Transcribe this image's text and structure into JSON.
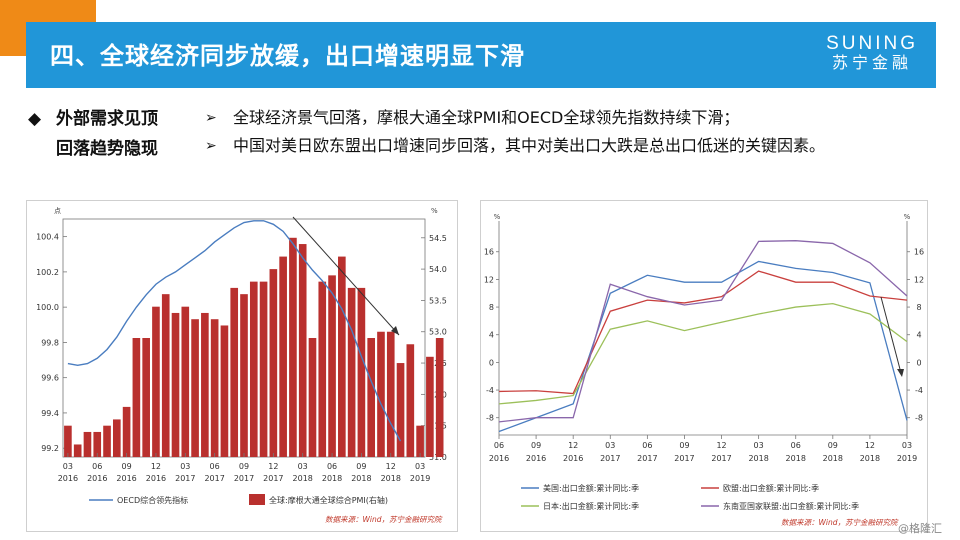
{
  "header": {
    "title": "四、全球经济同步放缓，出口增速明显下滑",
    "logo_en": "SUNING",
    "logo_cn": "苏宁金融"
  },
  "side_label": {
    "diamond": "◆",
    "line1": "外部需求见顶",
    "line2": "回落趋势隐现"
  },
  "bullets": [
    {
      "arrow": "➢",
      "text": "全球经济景气回落，摩根大通全球PMI和OECD全球领先指数持续下滑；"
    },
    {
      "arrow": "➢",
      "text": "中国对美日欧东盟出口增速同步回落，其中对美出口大跌是总出口低迷的关键因素。"
    }
  ],
  "watermark": "@格隆汇",
  "chart_data": [
    {
      "type": "bar",
      "left_axis_unit": "点",
      "right_axis_unit": "%",
      "ylim_left": [
        99.15,
        100.5
      ],
      "ylim_right": [
        51.0,
        54.8
      ],
      "left_ticks": [
        "100.4",
        "100.2",
        "100.0",
        "99.8",
        "99.6",
        "99.4",
        "99.2"
      ],
      "right_ticks": [
        "54.5",
        "54.0",
        "53.5",
        "53.0",
        "52.5",
        "52.0",
        "51.5",
        "51.0"
      ],
      "x_ticks": [
        {
          "m": "03",
          "y": "2016"
        },
        {
          "m": "06",
          "y": "2016"
        },
        {
          "m": "09",
          "y": "2016"
        },
        {
          "m": "12",
          "y": "2016"
        },
        {
          "m": "03",
          "y": "2017"
        },
        {
          "m": "06",
          "y": "2017"
        },
        {
          "m": "09",
          "y": "2017"
        },
        {
          "m": "12",
          "y": "2017"
        },
        {
          "m": "03",
          "y": "2018"
        },
        {
          "m": "06",
          "y": "2018"
        },
        {
          "m": "09",
          "y": "2018"
        },
        {
          "m": "12",
          "y": "2018"
        },
        {
          "m": "03",
          "y": "2019"
        }
      ],
      "series": [
        {
          "name": "全球:摩根大通全球综合PMI(右轴)",
          "type": "bar",
          "axis": "right",
          "color": "#b9302e",
          "values": [
            51.5,
            51.2,
            51.4,
            51.4,
            51.5,
            51.6,
            51.8,
            52.9,
            52.9,
            53.4,
            53.6,
            53.3,
            53.4,
            53.2,
            53.3,
            53.2,
            53.1,
            53.7,
            53.6,
            53.8,
            53.8,
            54.0,
            54.2,
            54.5,
            54.4,
            52.9,
            53.8,
            53.9,
            54.2,
            53.7,
            53.7,
            52.9,
            53.0,
            53.0,
            52.5,
            52.8,
            51.5,
            52.6,
            52.9
          ],
          "start": "2016-03"
        },
        {
          "name": "OECD综合领先指标",
          "type": "line",
          "axis": "left",
          "color": "#4a7dc0",
          "values": [
            99.68,
            99.67,
            99.68,
            99.71,
            99.76,
            99.83,
            99.92,
            100.0,
            100.07,
            100.13,
            100.17,
            100.2,
            100.24,
            100.28,
            100.32,
            100.37,
            100.41,
            100.45,
            100.48,
            100.49,
            100.49,
            100.47,
            100.43,
            100.36,
            100.28,
            100.21,
            100.15,
            100.08,
            99.99,
            99.87,
            99.72,
            99.58,
            99.45,
            99.34,
            99.24
          ],
          "start": "2016-03"
        }
      ],
      "legend": [
        "OECD综合领先指标",
        "全球:摩根大通全球综合PMI(右轴)"
      ],
      "source": "数据来源：Wind，苏宁金融研究院"
    },
    {
      "type": "line",
      "left_axis_unit": "%",
      "right_axis_unit": "%",
      "ylim": [
        -10.5,
        19
      ],
      "y_ticks": [
        "16",
        "12",
        "8",
        "4",
        "0",
        "-4",
        "-8"
      ],
      "x_ticks": [
        {
          "m": "06",
          "y": "2016"
        },
        {
          "m": "09",
          "y": "2016"
        },
        {
          "m": "12",
          "y": "2016"
        },
        {
          "m": "03",
          "y": "2017"
        },
        {
          "m": "06",
          "y": "2017"
        },
        {
          "m": "09",
          "y": "2017"
        },
        {
          "m": "12",
          "y": "2017"
        },
        {
          "m": "03",
          "y": "2018"
        },
        {
          "m": "06",
          "y": "2018"
        },
        {
          "m": "09",
          "y": "2018"
        },
        {
          "m": "12",
          "y": "2018"
        },
        {
          "m": "03",
          "y": "2019"
        }
      ],
      "quarters": [
        "2016Q2",
        "2016Q3",
        "2016Q4",
        "2017Q1",
        "2017Q2",
        "2017Q3",
        "2017Q4",
        "2018Q1",
        "2018Q2",
        "2018Q3",
        "2018Q4",
        "2019Q1"
      ],
      "series": [
        {
          "name": "美国:出口金额:累计同比:季",
          "color": "#4a7dc0",
          "values": [
            -10.0,
            -8.0,
            -6.0,
            10.0,
            12.6,
            11.6,
            11.6,
            14.6,
            13.6,
            13.0,
            11.5,
            -8.4
          ]
        },
        {
          "name": "欧盟:出口金额:累计同比:季",
          "color": "#c9403e",
          "values": [
            -4.2,
            -4.1,
            -4.5,
            7.4,
            9.0,
            8.6,
            9.5,
            13.2,
            11.6,
            11.6,
            9.6,
            9.0
          ]
        },
        {
          "name": "日本:出口金额:累计同比:季",
          "color": "#9cc05a",
          "values": [
            -6.0,
            -5.5,
            -4.8,
            4.8,
            6.0,
            4.6,
            5.8,
            7.0,
            8.0,
            8.5,
            7.0,
            3.0
          ]
        },
        {
          "name": "东南亚国家联盟:出口金额:累计同比:季",
          "color": "#8a67ab",
          "values": [
            -8.6,
            -8.0,
            -8.0,
            11.3,
            9.5,
            8.3,
            9.0,
            17.5,
            17.6,
            17.2,
            14.4,
            9.6
          ]
        }
      ],
      "legend": [
        "美国:出口金额:累计同比:季",
        "欧盟:出口金额:累计同比:季",
        "日本:出口金额:累计同比:季",
        "东南亚国家联盟:出口金额:累计同比:季"
      ],
      "source": "数据来源：Wind，苏宁金融研究院"
    }
  ]
}
